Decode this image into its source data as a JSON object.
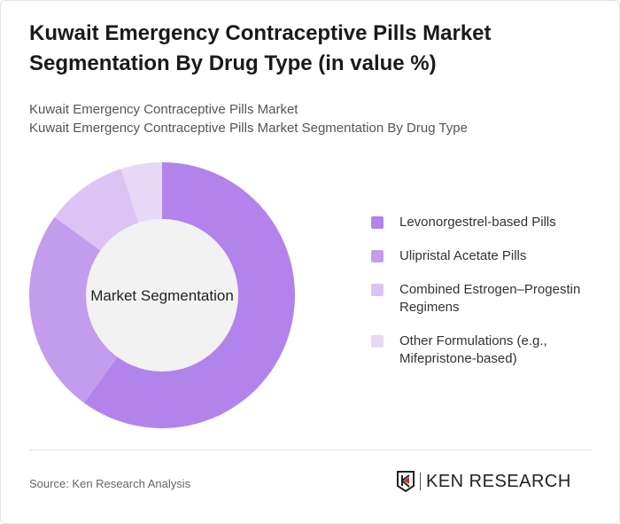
{
  "title": "Kuwait Emergency Contraceptive Pills Market Segmentation By Drug Type (in value %)",
  "subtitle1": "Kuwait Emergency Contraceptive Pills Market",
  "subtitle2": "Kuwait Emergency Contraceptive Pills Market Segmentation By Drug Type",
  "chart_data": {
    "type": "pie",
    "variant": "donut",
    "center_label": "Market Segmentation",
    "categories": [
      "Levonorgestrel-based Pills",
      "Ulipristal Acetate Pills",
      "Combined Estrogen–Progestin Regimens",
      "Other Formulations (e.g., Mifepristone-based)"
    ],
    "values": [
      60,
      25,
      10,
      5
    ],
    "colors": [
      "#b383ec",
      "#c49cee",
      "#dcc3f6",
      "#e8d8f8"
    ],
    "legend_placement": "right"
  },
  "source": "Source: Ken Research Analysis",
  "logo": "KEN RESEARCH"
}
